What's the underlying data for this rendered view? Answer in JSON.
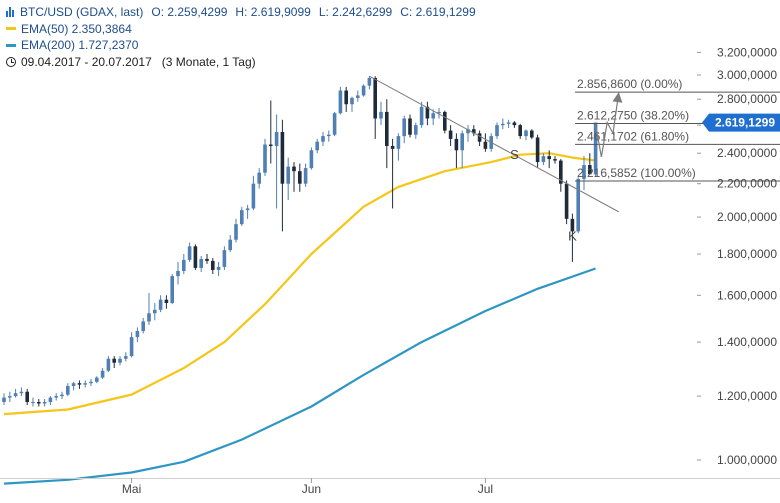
{
  "legend": {
    "symbol_line": "BTC/USD (GDAX, last)",
    "open": "O: 2.259,4299",
    "high": "H: 2.619,9099",
    "low": "L: 2.242,6299",
    "close": "C: 2.619,1299",
    "ema50": "EMA(50)  2.350,3864",
    "ema200": "EMA(200)  1.727,2370",
    "range": "09.04.2017 - 20.07.2017   (3 Monate, 1 Tag)"
  },
  "colors": {
    "up": "#4f7fb3",
    "down": "#1f2b3a",
    "ema50": "#f5c518",
    "ema200": "#2e96c4",
    "trend": "#7d7d7d",
    "badge": "#1e6fd0"
  },
  "chart_data": {
    "type": "candlestick",
    "y_scale": "log",
    "ylim": [
      900,
      3300
    ],
    "xlim": [
      "2017-04-09",
      "2017-07-24"
    ],
    "y_ticks": [
      1000,
      1200,
      1400,
      1600,
      1800,
      2000,
      2200,
      2400,
      2600,
      2800,
      3000,
      3200
    ],
    "y_tick_labels": [
      "1.000,0000",
      "1.200,0000",
      "1.400,0000",
      "1.600,0000",
      "1.800,0000",
      "2.000,0000",
      "2.200,0000",
      "2.400,0000",
      "2.600,0000",
      "2.800,0000",
      "3.000,0000",
      "3.200,0000"
    ],
    "x_ticks": [
      {
        "date": "2017-05-01",
        "label": "Mai"
      },
      {
        "date": "2017-06-01",
        "label": "Jun"
      },
      {
        "date": "2017-07-01",
        "label": "Jul"
      }
    ],
    "ohlc": [
      {
        "date": "2017-04-09",
        "o": 1180,
        "h": 1210,
        "l": 1170,
        "c": 1195
      },
      {
        "date": "2017-04-10",
        "o": 1195,
        "h": 1215,
        "l": 1180,
        "c": 1200
      },
      {
        "date": "2017-04-11",
        "o": 1200,
        "h": 1225,
        "l": 1195,
        "c": 1210
      },
      {
        "date": "2017-04-12",
        "o": 1210,
        "h": 1230,
        "l": 1200,
        "c": 1215
      },
      {
        "date": "2017-04-13",
        "o": 1215,
        "h": 1225,
        "l": 1170,
        "c": 1180
      },
      {
        "date": "2017-04-14",
        "o": 1180,
        "h": 1195,
        "l": 1165,
        "c": 1180
      },
      {
        "date": "2017-04-15",
        "o": 1180,
        "h": 1190,
        "l": 1165,
        "c": 1175
      },
      {
        "date": "2017-04-16",
        "o": 1175,
        "h": 1190,
        "l": 1165,
        "c": 1180
      },
      {
        "date": "2017-04-17",
        "o": 1180,
        "h": 1200,
        "l": 1170,
        "c": 1195
      },
      {
        "date": "2017-04-18",
        "o": 1195,
        "h": 1210,
        "l": 1185,
        "c": 1200
      },
      {
        "date": "2017-04-19",
        "o": 1200,
        "h": 1215,
        "l": 1190,
        "c": 1205
      },
      {
        "date": "2017-04-20",
        "o": 1205,
        "h": 1245,
        "l": 1200,
        "c": 1235
      },
      {
        "date": "2017-04-21",
        "o": 1235,
        "h": 1250,
        "l": 1220,
        "c": 1245
      },
      {
        "date": "2017-04-22",
        "o": 1245,
        "h": 1255,
        "l": 1225,
        "c": 1240
      },
      {
        "date": "2017-04-23",
        "o": 1240,
        "h": 1255,
        "l": 1230,
        "c": 1245
      },
      {
        "date": "2017-04-24",
        "o": 1245,
        "h": 1260,
        "l": 1235,
        "c": 1250
      },
      {
        "date": "2017-04-25",
        "o": 1250,
        "h": 1270,
        "l": 1245,
        "c": 1265
      },
      {
        "date": "2017-04-26",
        "o": 1265,
        "h": 1300,
        "l": 1260,
        "c": 1290
      },
      {
        "date": "2017-04-27",
        "o": 1290,
        "h": 1345,
        "l": 1285,
        "c": 1335
      },
      {
        "date": "2017-04-28",
        "o": 1335,
        "h": 1345,
        "l": 1300,
        "c": 1320
      },
      {
        "date": "2017-04-29",
        "o": 1320,
        "h": 1345,
        "l": 1310,
        "c": 1335
      },
      {
        "date": "2017-04-30",
        "o": 1335,
        "h": 1360,
        "l": 1325,
        "c": 1345
      },
      {
        "date": "2017-05-01",
        "o": 1345,
        "h": 1440,
        "l": 1340,
        "c": 1420
      },
      {
        "date": "2017-05-02",
        "o": 1420,
        "h": 1460,
        "l": 1400,
        "c": 1445
      },
      {
        "date": "2017-05-03",
        "o": 1445,
        "h": 1500,
        "l": 1435,
        "c": 1485
      },
      {
        "date": "2017-05-04",
        "o": 1485,
        "h": 1610,
        "l": 1470,
        "c": 1520
      },
      {
        "date": "2017-05-05",
        "o": 1520,
        "h": 1565,
        "l": 1490,
        "c": 1535
      },
      {
        "date": "2017-05-06",
        "o": 1535,
        "h": 1600,
        "l": 1525,
        "c": 1580
      },
      {
        "date": "2017-05-07",
        "o": 1580,
        "h": 1600,
        "l": 1540,
        "c": 1565
      },
      {
        "date": "2017-05-08",
        "o": 1565,
        "h": 1700,
        "l": 1560,
        "c": 1690
      },
      {
        "date": "2017-05-09",
        "o": 1690,
        "h": 1760,
        "l": 1650,
        "c": 1715
      },
      {
        "date": "2017-05-10",
        "o": 1715,
        "h": 1800,
        "l": 1700,
        "c": 1770
      },
      {
        "date": "2017-05-11",
        "o": 1770,
        "h": 1860,
        "l": 1760,
        "c": 1840
      },
      {
        "date": "2017-05-12",
        "o": 1840,
        "h": 1850,
        "l": 1720,
        "c": 1730
      },
      {
        "date": "2017-05-13",
        "o": 1730,
        "h": 1790,
        "l": 1710,
        "c": 1775
      },
      {
        "date": "2017-05-14",
        "o": 1775,
        "h": 1800,
        "l": 1750,
        "c": 1765
      },
      {
        "date": "2017-05-15",
        "o": 1765,
        "h": 1780,
        "l": 1700,
        "c": 1720
      },
      {
        "date": "2017-05-16",
        "o": 1720,
        "h": 1760,
        "l": 1690,
        "c": 1735
      },
      {
        "date": "2017-05-17",
        "o": 1735,
        "h": 1840,
        "l": 1720,
        "c": 1820
      },
      {
        "date": "2017-05-18",
        "o": 1820,
        "h": 1900,
        "l": 1810,
        "c": 1875
      },
      {
        "date": "2017-05-19",
        "o": 1875,
        "h": 1990,
        "l": 1860,
        "c": 1960
      },
      {
        "date": "2017-05-20",
        "o": 1960,
        "h": 2060,
        "l": 1950,
        "c": 2040
      },
      {
        "date": "2017-05-21",
        "o": 2040,
        "h": 2070,
        "l": 1990,
        "c": 2050
      },
      {
        "date": "2017-05-22",
        "o": 2050,
        "h": 2250,
        "l": 2040,
        "c": 2200
      },
      {
        "date": "2017-05-23",
        "o": 2200,
        "h": 2300,
        "l": 2170,
        "c": 2270
      },
      {
        "date": "2017-05-24",
        "o": 2270,
        "h": 2500,
        "l": 2250,
        "c": 2460
      },
      {
        "date": "2017-05-25",
        "o": 2460,
        "h": 2790,
        "l": 2330,
        "c": 2450
      },
      {
        "date": "2017-05-26",
        "o": 2450,
        "h": 2680,
        "l": 2050,
        "c": 2550
      },
      {
        "date": "2017-05-27",
        "o": 2550,
        "h": 2640,
        "l": 1920,
        "c": 2200
      },
      {
        "date": "2017-05-28",
        "o": 2200,
        "h": 2370,
        "l": 2100,
        "c": 2310
      },
      {
        "date": "2017-05-29",
        "o": 2310,
        "h": 2340,
        "l": 2150,
        "c": 2280
      },
      {
        "date": "2017-05-30",
        "o": 2280,
        "h": 2330,
        "l": 2150,
        "c": 2200
      },
      {
        "date": "2017-05-31",
        "o": 2200,
        "h": 2330,
        "l": 2180,
        "c": 2300
      },
      {
        "date": "2017-06-01",
        "o": 2300,
        "h": 2440,
        "l": 2290,
        "c": 2420
      },
      {
        "date": "2017-06-02",
        "o": 2420,
        "h": 2500,
        "l": 2400,
        "c": 2480
      },
      {
        "date": "2017-06-03",
        "o": 2480,
        "h": 2550,
        "l": 2450,
        "c": 2520
      },
      {
        "date": "2017-06-04",
        "o": 2520,
        "h": 2560,
        "l": 2480,
        "c": 2530
      },
      {
        "date": "2017-06-05",
        "o": 2530,
        "h": 2700,
        "l": 2520,
        "c": 2690
      },
      {
        "date": "2017-06-06",
        "o": 2690,
        "h": 2900,
        "l": 2680,
        "c": 2870
      },
      {
        "date": "2017-06-07",
        "o": 2870,
        "h": 2900,
        "l": 2700,
        "c": 2760
      },
      {
        "date": "2017-06-08",
        "o": 2760,
        "h": 2820,
        "l": 2700,
        "c": 2810
      },
      {
        "date": "2017-06-09",
        "o": 2810,
        "h": 2870,
        "l": 2780,
        "c": 2830
      },
      {
        "date": "2017-06-10",
        "o": 2830,
        "h": 2920,
        "l": 2820,
        "c": 2910
      },
      {
        "date": "2017-06-11",
        "o": 2910,
        "h": 2990,
        "l": 2880,
        "c": 2975
      },
      {
        "date": "2017-06-12",
        "o": 2975,
        "h": 2990,
        "l": 2500,
        "c": 2650
      },
      {
        "date": "2017-06-13",
        "o": 2650,
        "h": 2780,
        "l": 2600,
        "c": 2700
      },
      {
        "date": "2017-06-14",
        "o": 2700,
        "h": 2800,
        "l": 2300,
        "c": 2450
      },
      {
        "date": "2017-06-15",
        "o": 2450,
        "h": 2500,
        "l": 2050,
        "c": 2430
      },
      {
        "date": "2017-06-16",
        "o": 2430,
        "h": 2540,
        "l": 2350,
        "c": 2520
      },
      {
        "date": "2017-06-17",
        "o": 2520,
        "h": 2670,
        "l": 2470,
        "c": 2650
      },
      {
        "date": "2017-06-18",
        "o": 2650,
        "h": 2680,
        "l": 2510,
        "c": 2530
      },
      {
        "date": "2017-06-19",
        "o": 2530,
        "h": 2620,
        "l": 2500,
        "c": 2600
      },
      {
        "date": "2017-06-20",
        "o": 2600,
        "h": 2780,
        "l": 2580,
        "c": 2740
      },
      {
        "date": "2017-06-21",
        "o": 2740,
        "h": 2780,
        "l": 2600,
        "c": 2650
      },
      {
        "date": "2017-06-22",
        "o": 2650,
        "h": 2720,
        "l": 2600,
        "c": 2690
      },
      {
        "date": "2017-06-23",
        "o": 2690,
        "h": 2730,
        "l": 2650,
        "c": 2700
      },
      {
        "date": "2017-06-24",
        "o": 2700,
        "h": 2710,
        "l": 2540,
        "c": 2560
      },
      {
        "date": "2017-06-25",
        "o": 2560,
        "h": 2600,
        "l": 2450,
        "c": 2500
      },
      {
        "date": "2017-06-26",
        "o": 2500,
        "h": 2540,
        "l": 2300,
        "c": 2420
      },
      {
        "date": "2017-06-27",
        "o": 2420,
        "h": 2560,
        "l": 2300,
        "c": 2540
      },
      {
        "date": "2017-06-28",
        "o": 2540,
        "h": 2600,
        "l": 2480,
        "c": 2570
      },
      {
        "date": "2017-06-29",
        "o": 2570,
        "h": 2600,
        "l": 2520,
        "c": 2540
      },
      {
        "date": "2017-06-30",
        "o": 2540,
        "h": 2560,
        "l": 2450,
        "c": 2480
      },
      {
        "date": "2017-07-01",
        "o": 2480,
        "h": 2540,
        "l": 2410,
        "c": 2430
      },
      {
        "date": "2017-07-02",
        "o": 2430,
        "h": 2540,
        "l": 2410,
        "c": 2520
      },
      {
        "date": "2017-07-03",
        "o": 2520,
        "h": 2620,
        "l": 2500,
        "c": 2600
      },
      {
        "date": "2017-07-04",
        "o": 2600,
        "h": 2650,
        "l": 2570,
        "c": 2610
      },
      {
        "date": "2017-07-05",
        "o": 2610,
        "h": 2640,
        "l": 2580,
        "c": 2620
      },
      {
        "date": "2017-07-06",
        "o": 2620,
        "h": 2630,
        "l": 2580,
        "c": 2600
      },
      {
        "date": "2017-07-07",
        "o": 2600,
        "h": 2610,
        "l": 2500,
        "c": 2520
      },
      {
        "date": "2017-07-08",
        "o": 2520,
        "h": 2570,
        "l": 2490,
        "c": 2560
      },
      {
        "date": "2017-07-09",
        "o": 2560,
        "h": 2570,
        "l": 2500,
        "c": 2510
      },
      {
        "date": "2017-07-10",
        "o": 2510,
        "h": 2530,
        "l": 2300,
        "c": 2340
      },
      {
        "date": "2017-07-11",
        "o": 2340,
        "h": 2400,
        "l": 2320,
        "c": 2380
      },
      {
        "date": "2017-07-12",
        "o": 2380,
        "h": 2420,
        "l": 2300,
        "c": 2360
      },
      {
        "date": "2017-07-13",
        "o": 2360,
        "h": 2380,
        "l": 2330,
        "c": 2350
      },
      {
        "date": "2017-07-14",
        "o": 2350,
        "h": 2360,
        "l": 2150,
        "c": 2200
      },
      {
        "date": "2017-07-15",
        "o": 2200,
        "h": 2220,
        "l": 1960,
        "c": 1990
      },
      {
        "date": "2017-07-16",
        "o": 1990,
        "h": 2020,
        "l": 1760,
        "c": 1920
      },
      {
        "date": "2017-07-17",
        "o": 1920,
        "h": 2240,
        "l": 1910,
        "c": 2230
      },
      {
        "date": "2017-07-18",
        "o": 2230,
        "h": 2380,
        "l": 2160,
        "c": 2320
      },
      {
        "date": "2017-07-19",
        "o": 2320,
        "h": 2400,
        "l": 2260,
        "c": 2260
      },
      {
        "date": "2017-07-20",
        "o": 2259.4299,
        "h": 2619.9099,
        "l": 2242.6299,
        "c": 2619.1299
      }
    ],
    "ema50": [
      {
        "date": "2017-04-09",
        "v": 1140
      },
      {
        "date": "2017-04-20",
        "v": 1155
      },
      {
        "date": "2017-05-01",
        "v": 1205
      },
      {
        "date": "2017-05-10",
        "v": 1300
      },
      {
        "date": "2017-05-17",
        "v": 1400
      },
      {
        "date": "2017-05-24",
        "v": 1560
      },
      {
        "date": "2017-06-01",
        "v": 1800
      },
      {
        "date": "2017-06-10",
        "v": 2060
      },
      {
        "date": "2017-06-16",
        "v": 2180
      },
      {
        "date": "2017-06-24",
        "v": 2280
      },
      {
        "date": "2017-07-02",
        "v": 2340
      },
      {
        "date": "2017-07-07",
        "v": 2390
      },
      {
        "date": "2017-07-12",
        "v": 2400
      },
      {
        "date": "2017-07-16",
        "v": 2370
      },
      {
        "date": "2017-07-20",
        "v": 2350.3864
      }
    ],
    "ema200": [
      {
        "date": "2017-04-09",
        "v": 935
      },
      {
        "date": "2017-04-20",
        "v": 945
      },
      {
        "date": "2017-05-01",
        "v": 965
      },
      {
        "date": "2017-05-10",
        "v": 995
      },
      {
        "date": "2017-05-20",
        "v": 1060
      },
      {
        "date": "2017-06-01",
        "v": 1165
      },
      {
        "date": "2017-06-10",
        "v": 1275
      },
      {
        "date": "2017-06-20",
        "v": 1400
      },
      {
        "date": "2017-07-01",
        "v": 1530
      },
      {
        "date": "2017-07-10",
        "v": 1630
      },
      {
        "date": "2017-07-20",
        "v": 1727.237
      }
    ],
    "trendline": [
      {
        "date": "2017-06-11",
        "v": 2990
      },
      {
        "date": "2017-07-24",
        "v": 2030
      }
    ],
    "fib_levels": [
      {
        "label": "2.856,8600 (0.00%)",
        "value": 2856.86
      },
      {
        "label": "2.612,2750 (38.20%)",
        "value": 2612.275
      },
      {
        "label": "2.461,1702 (61.80%)",
        "value": 2461.1702
      },
      {
        "label": "2.216,5852 (100.00%)",
        "value": 2216.5852
      }
    ],
    "projection_path": [
      {
        "date": "2017-07-20",
        "v": 2600
      },
      {
        "date": "2017-07-21",
        "v": 2375
      },
      {
        "date": "2017-07-22",
        "v": 2620
      },
      {
        "date": "2017-07-23",
        "v": 2540
      },
      {
        "date": "2017-07-24",
        "v": 2856.86
      }
    ],
    "annotations": [
      {
        "text": "S",
        "date": "2017-07-06",
        "v": 2360
      },
      {
        "text": "K",
        "date": "2017-07-16",
        "v": 1870
      }
    ],
    "last_price_label": "2.619,1299"
  }
}
